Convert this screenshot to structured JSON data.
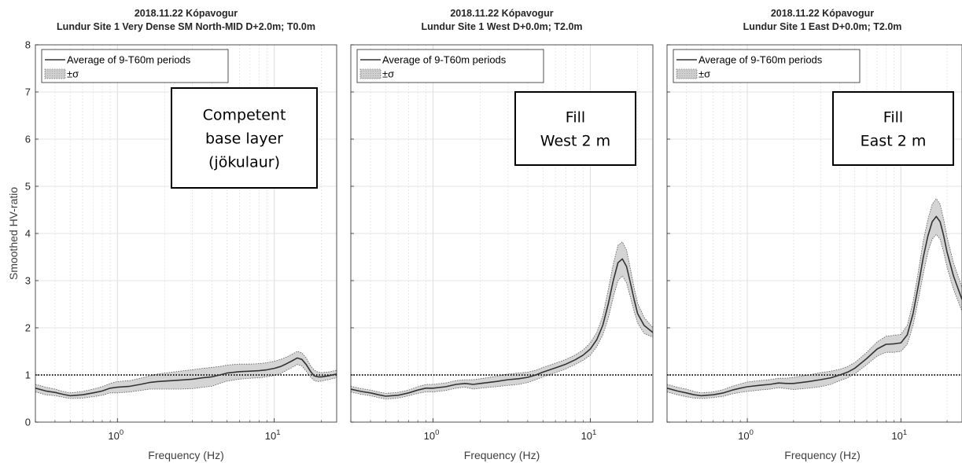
{
  "figure": {
    "ylabel": "Smoothed HV-ratio",
    "xlabel": "Frequency (Hz)"
  },
  "chart_data": [
    {
      "type": "line",
      "title": "2018.11.22 Kópavogur",
      "subtitle": "Lundur Site 1 Very Dense SM North-MID D+2.0m; T0.0m",
      "xlabel": "Frequency (Hz)",
      "ylabel": "Smoothed HV-ratio",
      "xscale": "log",
      "xlim": [
        0.3,
        25
      ],
      "ylim": [
        0,
        8
      ],
      "xticks": [
        1,
        10
      ],
      "xtick_labels": [
        {
          "base": "10",
          "exp": "0"
        },
        {
          "base": "10",
          "exp": "1"
        }
      ],
      "yticks": [
        0,
        1,
        2,
        3,
        4,
        5,
        6,
        7,
        8
      ],
      "grid": true,
      "reference_line": 1,
      "legend": {
        "entries": [
          "Average of 9-T60m periods",
          "±σ"
        ],
        "placement": "top-left"
      },
      "annotation": [
        "Competent",
        "base layer",
        "(jökulaur)"
      ],
      "series": [
        {
          "name": "Average of 9-T60m periods",
          "x": [
            0.3,
            0.35,
            0.4,
            0.45,
            0.5,
            0.6,
            0.7,
            0.8,
            0.9,
            1.0,
            1.2,
            1.4,
            1.6,
            1.8,
            2.0,
            2.5,
            3.0,
            3.5,
            4.0,
            4.5,
            5.0,
            6.0,
            7.0,
            8.0,
            9.0,
            10.0,
            11.0,
            12.0,
            13.0,
            14.0,
            15.0,
            16.0,
            17.0,
            18.0,
            19.0,
            20.0,
            22.0,
            25.0
          ],
          "y": [
            0.72,
            0.66,
            0.63,
            0.59,
            0.56,
            0.58,
            0.62,
            0.66,
            0.72,
            0.74,
            0.76,
            0.8,
            0.84,
            0.86,
            0.87,
            0.89,
            0.91,
            0.94,
            0.96,
            1.0,
            1.04,
            1.07,
            1.08,
            1.09,
            1.11,
            1.14,
            1.18,
            1.24,
            1.3,
            1.36,
            1.33,
            1.22,
            1.08,
            0.98,
            0.96,
            0.96,
            0.98,
            1.02
          ]
        },
        {
          "name": "±σ",
          "x": [
            0.3,
            0.35,
            0.4,
            0.45,
            0.5,
            0.6,
            0.7,
            0.8,
            0.9,
            1.0,
            1.2,
            1.4,
            1.6,
            1.8,
            2.0,
            2.5,
            3.0,
            3.5,
            4.0,
            4.5,
            5.0,
            6.0,
            7.0,
            8.0,
            9.0,
            10.0,
            11.0,
            12.0,
            13.0,
            14.0,
            15.0,
            16.0,
            17.0,
            18.0,
            19.0,
            20.0,
            22.0,
            25.0
          ],
          "upper": [
            0.8,
            0.74,
            0.7,
            0.65,
            0.62,
            0.65,
            0.7,
            0.75,
            0.82,
            0.86,
            0.88,
            0.93,
            0.98,
            1.02,
            1.04,
            1.08,
            1.11,
            1.14,
            1.16,
            1.18,
            1.21,
            1.23,
            1.23,
            1.24,
            1.26,
            1.29,
            1.33,
            1.38,
            1.44,
            1.5,
            1.47,
            1.36,
            1.2,
            1.1,
            1.06,
            1.05,
            1.06,
            1.1
          ],
          "lower": [
            0.64,
            0.58,
            0.56,
            0.53,
            0.5,
            0.51,
            0.54,
            0.57,
            0.62,
            0.62,
            0.64,
            0.67,
            0.7,
            0.7,
            0.7,
            0.7,
            0.71,
            0.74,
            0.76,
            0.82,
            0.87,
            0.91,
            0.93,
            0.94,
            0.96,
            0.99,
            1.03,
            1.1,
            1.16,
            1.22,
            1.19,
            1.08,
            0.96,
            0.88,
            0.86,
            0.87,
            0.9,
            0.94
          ]
        }
      ]
    },
    {
      "type": "line",
      "title": "2018.11.22 Kópavogur",
      "subtitle": "Lundur Site 1 West D+0.0m; T2.0m",
      "xlabel": "Frequency (Hz)",
      "ylabel": "",
      "xscale": "log",
      "xlim": [
        0.3,
        25
      ],
      "ylim": [
        0,
        8
      ],
      "xticks": [
        1,
        10
      ],
      "xtick_labels": [
        {
          "base": "10",
          "exp": "0"
        },
        {
          "base": "10",
          "exp": "1"
        }
      ],
      "yticks": [
        0,
        1,
        2,
        3,
        4,
        5,
        6,
        7,
        8
      ],
      "grid": true,
      "reference_line": 1,
      "legend": {
        "entries": [
          "Average of 9-T60m periods",
          "±σ"
        ],
        "placement": "top-left"
      },
      "annotation": [
        "Fill",
        "West 2 m"
      ],
      "series": [
        {
          "name": "Average of 9-T60m periods",
          "x": [
            0.3,
            0.35,
            0.4,
            0.45,
            0.5,
            0.6,
            0.7,
            0.8,
            0.9,
            1.0,
            1.2,
            1.4,
            1.6,
            1.8,
            2.0,
            2.5,
            3.0,
            3.5,
            4.0,
            4.5,
            5.0,
            6.0,
            7.0,
            8.0,
            9.0,
            10.0,
            11.0,
            12.0,
            13.0,
            14.0,
            15.0,
            16.0,
            17.0,
            18.0,
            19.0,
            20.0,
            22.0,
            25.0
          ],
          "y": [
            0.7,
            0.65,
            0.62,
            0.58,
            0.55,
            0.57,
            0.62,
            0.68,
            0.72,
            0.72,
            0.75,
            0.8,
            0.82,
            0.8,
            0.82,
            0.86,
            0.9,
            0.92,
            0.95,
            1.0,
            1.06,
            1.15,
            1.23,
            1.32,
            1.42,
            1.55,
            1.75,
            2.05,
            2.5,
            3.0,
            3.38,
            3.46,
            3.3,
            2.95,
            2.6,
            2.3,
            2.05,
            1.9
          ]
        },
        {
          "name": "±σ",
          "x": [
            0.3,
            0.35,
            0.4,
            0.45,
            0.5,
            0.6,
            0.7,
            0.8,
            0.9,
            1.0,
            1.2,
            1.4,
            1.6,
            1.8,
            2.0,
            2.5,
            3.0,
            3.5,
            4.0,
            4.5,
            5.0,
            6.0,
            7.0,
            8.0,
            9.0,
            10.0,
            11.0,
            12.0,
            13.0,
            14.0,
            15.0,
            16.0,
            17.0,
            18.0,
            19.0,
            20.0,
            22.0,
            25.0
          ],
          "upper": [
            0.76,
            0.71,
            0.68,
            0.64,
            0.61,
            0.63,
            0.68,
            0.75,
            0.8,
            0.8,
            0.83,
            0.88,
            0.9,
            0.9,
            0.92,
            0.97,
            1.02,
            1.04,
            1.06,
            1.1,
            1.16,
            1.25,
            1.33,
            1.42,
            1.53,
            1.68,
            1.9,
            2.25,
            2.8,
            3.35,
            3.75,
            3.82,
            3.65,
            3.25,
            2.85,
            2.52,
            2.22,
            2.0
          ],
          "lower": [
            0.64,
            0.59,
            0.56,
            0.52,
            0.49,
            0.51,
            0.56,
            0.61,
            0.64,
            0.64,
            0.67,
            0.72,
            0.74,
            0.7,
            0.72,
            0.75,
            0.78,
            0.8,
            0.84,
            0.9,
            0.96,
            1.05,
            1.13,
            1.22,
            1.31,
            1.42,
            1.6,
            1.85,
            2.2,
            2.65,
            3.0,
            3.1,
            2.95,
            2.65,
            2.35,
            2.1,
            1.88,
            1.8
          ]
        }
      ]
    },
    {
      "type": "line",
      "title": "2018.11.22 Kópavogur",
      "subtitle": "Lundur Site 1 East D+0.0m; T2.0m",
      "xlabel": "Frequency (Hz)",
      "ylabel": "",
      "xscale": "log",
      "xlim": [
        0.3,
        25
      ],
      "ylim": [
        0,
        8
      ],
      "xticks": [
        1,
        10
      ],
      "xtick_labels": [
        {
          "base": "10",
          "exp": "0"
        },
        {
          "base": "10",
          "exp": "1"
        }
      ],
      "yticks": [
        0,
        1,
        2,
        3,
        4,
        5,
        6,
        7,
        8
      ],
      "grid": true,
      "reference_line": 1,
      "legend": {
        "entries": [
          "Average of 9-T60m periods",
          "±σ"
        ],
        "placement": "top-left"
      },
      "annotation": [
        "Fill",
        "East 2 m"
      ],
      "series": [
        {
          "name": "Average of 9-T60m periods",
          "x": [
            0.3,
            0.35,
            0.4,
            0.45,
            0.5,
            0.6,
            0.7,
            0.8,
            0.9,
            1.0,
            1.2,
            1.4,
            1.6,
            1.8,
            2.0,
            2.5,
            3.0,
            3.5,
            4.0,
            4.5,
            5.0,
            6.0,
            7.0,
            8.0,
            9.0,
            10.0,
            11.0,
            12.0,
            13.0,
            14.0,
            15.0,
            16.0,
            17.0,
            18.0,
            19.0,
            20.0,
            22.0,
            25.0
          ],
          "y": [
            0.72,
            0.66,
            0.62,
            0.58,
            0.56,
            0.58,
            0.62,
            0.68,
            0.72,
            0.75,
            0.78,
            0.8,
            0.83,
            0.82,
            0.82,
            0.86,
            0.9,
            0.94,
            1.0,
            1.06,
            1.14,
            1.35,
            1.55,
            1.65,
            1.66,
            1.68,
            1.85,
            2.3,
            2.9,
            3.5,
            3.95,
            4.25,
            4.36,
            4.25,
            3.95,
            3.6,
            3.1,
            2.6
          ]
        },
        {
          "name": "±σ",
          "x": [
            0.3,
            0.35,
            0.4,
            0.45,
            0.5,
            0.6,
            0.7,
            0.8,
            0.9,
            1.0,
            1.2,
            1.4,
            1.6,
            1.8,
            2.0,
            2.5,
            3.0,
            3.5,
            4.0,
            4.5,
            5.0,
            6.0,
            7.0,
            8.0,
            9.0,
            10.0,
            11.0,
            12.0,
            13.0,
            14.0,
            15.0,
            16.0,
            17.0,
            18.0,
            19.0,
            20.0,
            22.0,
            25.0
          ],
          "upper": [
            0.8,
            0.74,
            0.7,
            0.65,
            0.62,
            0.64,
            0.69,
            0.76,
            0.81,
            0.85,
            0.88,
            0.9,
            0.93,
            0.93,
            0.95,
            1.0,
            1.05,
            1.08,
            1.12,
            1.18,
            1.26,
            1.48,
            1.7,
            1.82,
            1.84,
            1.86,
            2.05,
            2.55,
            3.2,
            3.85,
            4.3,
            4.62,
            4.74,
            4.62,
            4.3,
            3.92,
            3.38,
            2.85
          ],
          "lower": [
            0.64,
            0.58,
            0.54,
            0.51,
            0.5,
            0.52,
            0.55,
            0.6,
            0.63,
            0.65,
            0.68,
            0.7,
            0.73,
            0.71,
            0.69,
            0.72,
            0.75,
            0.8,
            0.88,
            0.94,
            1.02,
            1.22,
            1.4,
            1.48,
            1.48,
            1.5,
            1.65,
            2.05,
            2.6,
            3.15,
            3.6,
            3.88,
            3.98,
            3.88,
            3.6,
            3.28,
            2.82,
            2.35
          ]
        }
      ]
    }
  ]
}
